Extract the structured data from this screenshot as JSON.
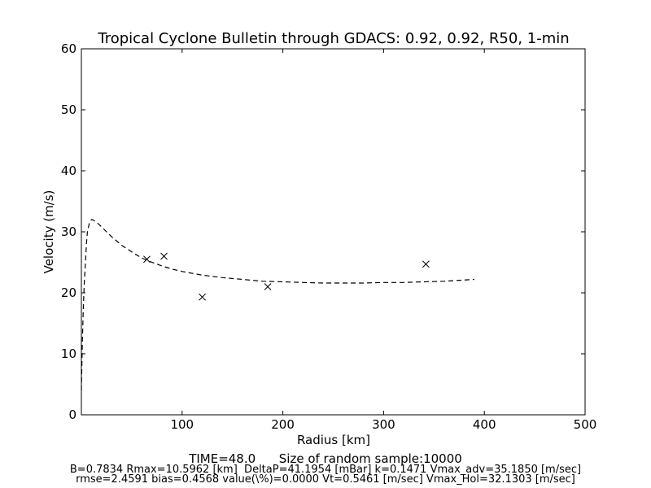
{
  "chart_data": {
    "type": "line",
    "title": "Tropical Cyclone Bulletin through GDACS: 0.92, 0.92, R50, 1-min",
    "xlabel": "Radius [km]",
    "ylabel": "Velocity (m/s)",
    "xlim": [
      0,
      500
    ],
    "ylim": [
      0,
      60
    ],
    "xticks": [
      100,
      200,
      300,
      400,
      500
    ],
    "yticks": [
      0,
      10,
      20,
      30,
      40,
      50,
      60
    ],
    "grid": false,
    "legend": "none",
    "series": [
      {
        "style": "dashed-line",
        "color": "#000000",
        "x": [
          0,
          0.5,
          1,
          2,
          3,
          4,
          5,
          6,
          7,
          8,
          9,
          10,
          11,
          12,
          14,
          17,
          20,
          25,
          30,
          40,
          50,
          60,
          70,
          80,
          90,
          100,
          120,
          140,
          160,
          180,
          200,
          220,
          240,
          260,
          280,
          300,
          320,
          340,
          360,
          380,
          390
        ],
        "y": [
          4,
          8,
          12,
          18,
          22,
          25,
          28,
          30,
          30.8,
          31.4,
          31.8,
          32.0,
          32.0,
          31.9,
          31.7,
          31.3,
          30.8,
          30.0,
          29.2,
          27.8,
          26.7,
          25.7,
          25.0,
          24.4,
          23.9,
          23.5,
          22.9,
          22.5,
          22.2,
          21.9,
          21.8,
          21.7,
          21.6,
          21.6,
          21.6,
          21.7,
          21.7,
          21.8,
          21.9,
          22.1,
          22.2
        ]
      },
      {
        "style": "x-markers",
        "color": "#000000",
        "x": [
          65,
          82,
          120,
          185,
          342
        ],
        "y": [
          25.5,
          26.0,
          19.3,
          21.0,
          24.7
        ]
      }
    ]
  },
  "captions": {
    "line1": "TIME=48.0      Size of random sample:10000",
    "line2": "B=0.7834 Rmax=10.5962 [km]  DeltaP=41.1954 [mBar] k=0.1471 Vmax_adv=35.1850 [m/sec]",
    "line3": "rmse=2.4591 bias=0.4568 value(\\%)=0.0000 Vt=0.5461 [m/sec] Vmax_Hol=32.1303 [m/sec]"
  }
}
